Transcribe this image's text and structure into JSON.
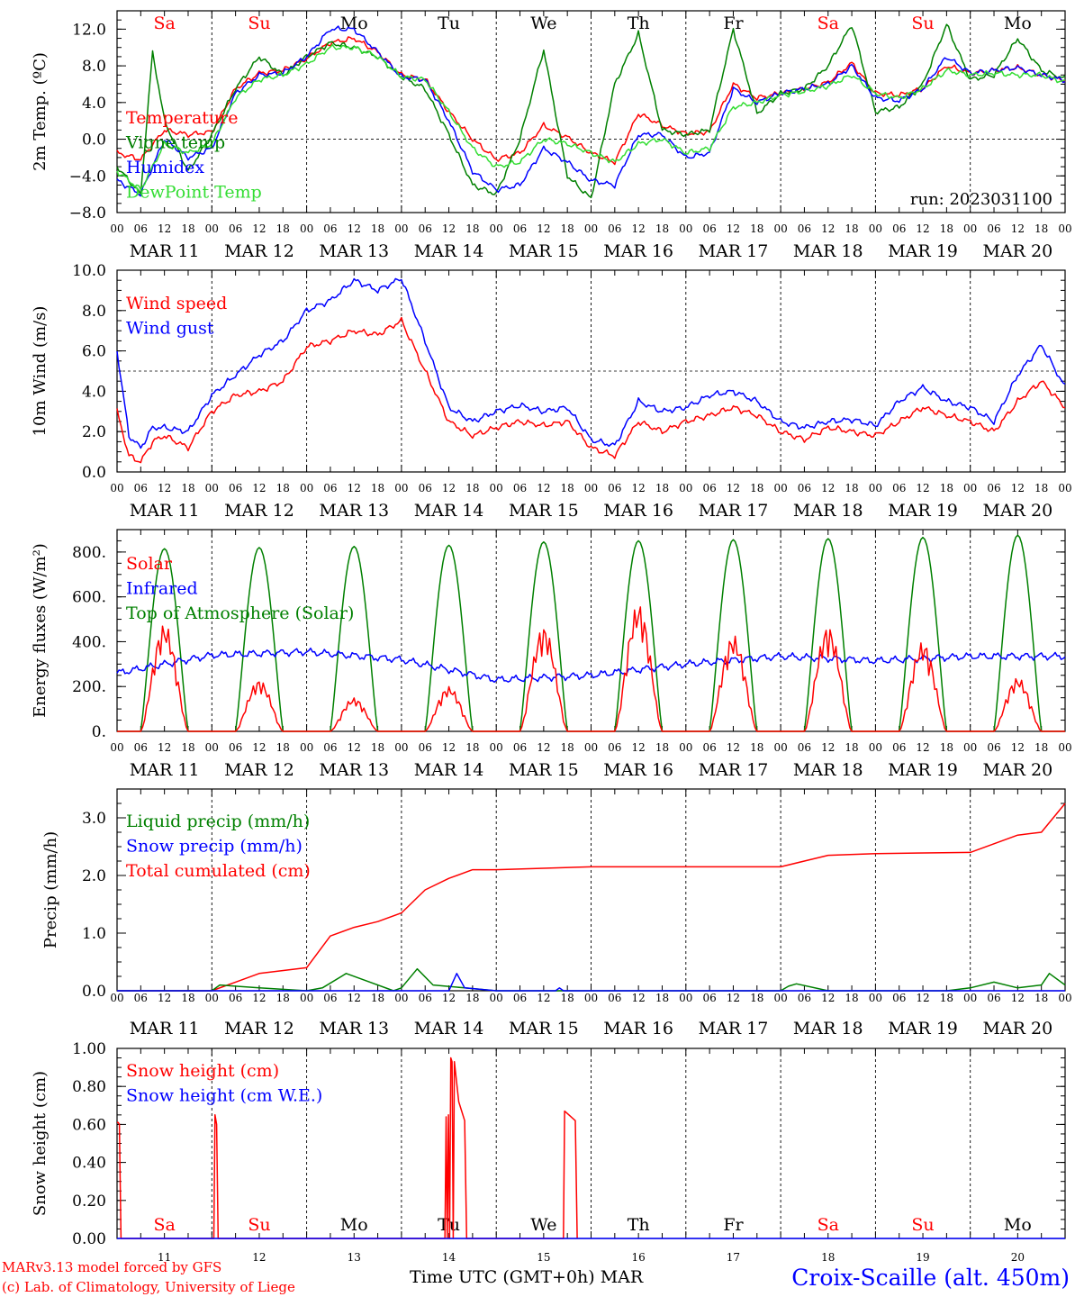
{
  "header": {
    "run_label": "run: 2023031100",
    "x_hour_labels": [
      "00",
      "06",
      "12",
      "18"
    ],
    "date_labels": [
      "MAR 11",
      "MAR 12",
      "MAR 13",
      "MAR 14",
      "MAR 15",
      "MAR 16",
      "MAR 17",
      "MAR 18",
      "MAR 19",
      "MAR 20"
    ],
    "weekdays": [
      "Sa",
      "Su",
      "Mo",
      "Tu",
      "We",
      "Th",
      "Fr",
      "Sa",
      "Su",
      "Mo"
    ],
    "weekday_colors": [
      "#ff0000",
      "#ff0000",
      "#000000",
      "#000000",
      "#000000",
      "#000000",
      "#000000",
      "#ff0000",
      "#ff0000",
      "#000000"
    ],
    "day_numbers": [
      "11",
      "12",
      "13",
      "14",
      "15",
      "16",
      "17",
      "18",
      "19",
      "20"
    ]
  },
  "footer": {
    "model": "MARv3.13 model forced by GFS",
    "credit": "(c) Lab. of Climatology, University of Liege",
    "xaxis": "Time UTC (GMT+0h) MAR",
    "station": "Croix-Scaille (alt. 450m)"
  },
  "colors": {
    "red": "#ff0000",
    "green": "#008000",
    "blue": "#0000ff",
    "lightgreen": "#33dd33",
    "purple": "#800080"
  },
  "chart_data": [
    {
      "type": "line",
      "id": "temp",
      "ylabel": "2m Temp. (ºC)",
      "ylim": [
        -8,
        14
      ],
      "yticks": [
        "12.0",
        "8.0",
        "4.0",
        "0.0",
        "−4.0",
        "−8.0"
      ],
      "x_unit": "hours since 2023-03-11 00 UTC",
      "reference_line": 0,
      "series": [
        {
          "name": "Temperature",
          "color": "#ff0000",
          "x": [
            0,
            6,
            12,
            18,
            24,
            30,
            36,
            42,
            48,
            54,
            60,
            66,
            72,
            78,
            84,
            90,
            96,
            102,
            108,
            114,
            120,
            126,
            132,
            138,
            144,
            150,
            156,
            162,
            168,
            174,
            180,
            186,
            192,
            198,
            204,
            210,
            216,
            222,
            228,
            234,
            240
          ],
          "values": [
            -1.5,
            -2.2,
            1.0,
            0.5,
            0.8,
            5.5,
            7.2,
            7.5,
            8.8,
            10.5,
            11.0,
            9.5,
            7.0,
            6.5,
            3.0,
            0.0,
            -2.2,
            -1.5,
            1.5,
            0.2,
            -1.5,
            -2.5,
            2.8,
            1.5,
            0.6,
            0.8,
            6.0,
            4.5,
            5.0,
            5.5,
            6.2,
            8.3,
            5.0,
            4.8,
            5.5,
            8.0,
            7.2,
            7.5,
            7.8,
            7.0,
            6.4
          ]
        },
        {
          "name": "Vigne temp",
          "color": "#008000",
          "x": [
            0,
            6,
            9,
            12,
            18,
            24,
            30,
            36,
            42,
            48,
            54,
            60,
            66,
            72,
            78,
            84,
            90,
            96,
            102,
            108,
            114,
            120,
            126,
            132,
            138,
            144,
            150,
            156,
            162,
            168,
            174,
            180,
            186,
            192,
            198,
            204,
            210,
            216,
            222,
            228,
            234,
            240
          ],
          "values": [
            -3.0,
            -6.0,
            9.5,
            2.0,
            -3.5,
            0.5,
            5.5,
            9.0,
            7.0,
            9.0,
            10.5,
            10.0,
            9.0,
            6.8,
            5.5,
            0.5,
            -5.0,
            -6.0,
            0.0,
            9.8,
            -4.0,
            -6.5,
            6.0,
            11.5,
            1.0,
            0.5,
            1.0,
            12.0,
            2.8,
            5.0,
            5.5,
            8.0,
            12.5,
            3.0,
            3.5,
            6.0,
            12.5,
            6.5,
            7.0,
            11.0,
            7.5,
            6.6
          ]
        },
        {
          "name": "Humidex",
          "color": "#0000ff",
          "x": [
            0,
            6,
            12,
            18,
            24,
            30,
            36,
            42,
            48,
            54,
            60,
            66,
            72,
            78,
            84,
            90,
            96,
            102,
            108,
            114,
            120,
            126,
            132,
            138,
            144,
            150,
            156,
            162,
            168,
            174,
            180,
            186,
            192,
            198,
            204,
            210,
            216,
            222,
            228,
            234,
            240
          ],
          "values": [
            -4.5,
            -6.0,
            0.0,
            -2.0,
            -1.0,
            5.0,
            7.0,
            7.2,
            9.0,
            12.0,
            12.0,
            9.5,
            6.8,
            6.5,
            2.0,
            -3.5,
            -5.5,
            -5.0,
            -1.0,
            -2.5,
            -4.5,
            -5.0,
            0.5,
            0.5,
            -2.0,
            -1.5,
            5.5,
            4.0,
            5.0,
            5.5,
            6.0,
            8.0,
            4.5,
            4.2,
            5.5,
            9.0,
            7.2,
            7.5,
            7.8,
            7.0,
            6.4
          ]
        },
        {
          "name": "DewPoint Temp",
          "color": "#33dd33",
          "x": [
            0,
            6,
            12,
            18,
            24,
            30,
            36,
            42,
            48,
            54,
            60,
            66,
            72,
            78,
            84,
            90,
            96,
            102,
            108,
            114,
            120,
            126,
            132,
            138,
            144,
            150,
            156,
            162,
            168,
            174,
            180,
            186,
            192,
            198,
            204,
            210,
            216,
            222,
            228,
            234,
            240
          ],
          "values": [
            -3.5,
            -5.5,
            -0.5,
            -1.5,
            -0.5,
            4.5,
            6.5,
            7.0,
            8.2,
            10.0,
            10.0,
            9.0,
            6.8,
            6.5,
            3.0,
            -1.0,
            -3.0,
            -2.5,
            0.0,
            -0.5,
            -1.5,
            -2.5,
            -0.5,
            0.0,
            -1.5,
            -1.0,
            3.5,
            4.0,
            4.8,
            5.2,
            5.8,
            7.0,
            5.0,
            4.5,
            5.5,
            7.5,
            7.0,
            7.2,
            7.0,
            7.0,
            6.2
          ]
        }
      ],
      "legend": [
        "Temperature",
        "Vigne temp",
        "Humidex",
        "DewPoint Temp"
      ]
    },
    {
      "type": "line",
      "id": "wind",
      "ylabel": "10m Wind (m/s)",
      "ylim": [
        0,
        10
      ],
      "yticks": [
        "10.0",
        "8.0",
        "6.0",
        "4.0",
        "2.0",
        "0.0"
      ],
      "x_unit": "hours since 2023-03-11 00 UTC",
      "reference_line": 5,
      "series": [
        {
          "name": "Wind speed",
          "color": "#ff0000",
          "x": [
            0,
            3,
            6,
            9,
            12,
            18,
            24,
            30,
            36,
            42,
            48,
            54,
            60,
            66,
            72,
            78,
            84,
            90,
            96,
            102,
            108,
            114,
            120,
            126,
            132,
            138,
            144,
            150,
            156,
            162,
            168,
            174,
            180,
            186,
            192,
            198,
            204,
            210,
            216,
            222,
            228,
            234,
            240
          ],
          "values": [
            3.0,
            0.8,
            0.5,
            1.5,
            1.8,
            1.2,
            3.0,
            3.8,
            4.0,
            4.5,
            6.2,
            6.5,
            7.0,
            6.8,
            7.5,
            5.0,
            2.5,
            1.8,
            2.2,
            2.5,
            2.3,
            2.5,
            1.2,
            0.8,
            2.5,
            2.0,
            2.5,
            2.8,
            3.2,
            2.8,
            2.0,
            1.6,
            2.2,
            2.0,
            1.8,
            2.5,
            3.2,
            2.8,
            2.5,
            2.0,
            3.5,
            4.5,
            3.2
          ]
        },
        {
          "name": "Wind gust",
          "color": "#0000ff",
          "x": [
            0,
            3,
            6,
            9,
            12,
            18,
            24,
            30,
            36,
            42,
            48,
            54,
            60,
            66,
            72,
            78,
            84,
            90,
            96,
            102,
            108,
            114,
            120,
            126,
            132,
            138,
            144,
            150,
            156,
            162,
            168,
            174,
            180,
            186,
            192,
            198,
            204,
            210,
            216,
            222,
            228,
            234,
            240
          ],
          "values": [
            6.0,
            1.8,
            1.2,
            2.2,
            2.2,
            2.0,
            3.8,
            4.8,
            5.8,
            6.5,
            8.0,
            8.5,
            9.5,
            9.0,
            9.6,
            6.5,
            3.2,
            2.5,
            3.0,
            3.3,
            3.0,
            3.2,
            1.6,
            1.3,
            3.5,
            3.0,
            3.2,
            3.8,
            4.0,
            3.5,
            2.5,
            2.2,
            2.5,
            2.6,
            2.3,
            3.5,
            4.2,
            3.5,
            3.2,
            2.5,
            4.8,
            6.3,
            4.2
          ]
        }
      ],
      "legend": [
        "Wind speed",
        "Wind gust"
      ]
    },
    {
      "type": "line",
      "id": "energy",
      "ylabel": "Energy fluxes (W/m²)",
      "ylim": [
        0,
        900
      ],
      "yticks": [
        "800.",
        "600.",
        "400.",
        "200.",
        "0."
      ],
      "x_unit": "hours since 2023-03-11 00 UTC",
      "solar_peaks": [
        480,
        230,
        150,
        200,
        470,
        570,
        430,
        470,
        400,
        240
      ],
      "toa_peaks": [
        815,
        820,
        825,
        830,
        845,
        850,
        855,
        860,
        865,
        875
      ],
      "infrared_levels": [
        260,
        340,
        355,
        320,
        230,
        250,
        300,
        335,
        315,
        335
      ],
      "legend": [
        "Solar",
        "Infrared",
        "Top of Atmosphere (Solar)"
      ],
      "legend_colors": [
        "#ff0000",
        "#0000ff",
        "#008000"
      ]
    },
    {
      "type": "line",
      "id": "precip",
      "ylabel": "Precip (mm/h)",
      "ylim": [
        0,
        3.5
      ],
      "yticks": [
        "3.0",
        "2.0",
        "1.0",
        "0.0"
      ],
      "x_unit": "hours since 2023-03-11 00 UTC",
      "series": [
        {
          "name": "Total cumulated (cm)",
          "color": "#ff0000",
          "x": [
            0,
            24,
            30,
            36,
            48,
            54,
            60,
            66,
            72,
            78,
            84,
            90,
            96,
            120,
            144,
            168,
            174,
            180,
            192,
            216,
            222,
            228,
            234,
            240
          ],
          "values": [
            0,
            0,
            0.15,
            0.3,
            0.4,
            0.95,
            1.1,
            1.2,
            1.35,
            1.75,
            1.95,
            2.1,
            2.1,
            2.15,
            2.15,
            2.15,
            2.25,
            2.35,
            2.38,
            2.4,
            2.55,
            2.7,
            2.75,
            3.25
          ]
        },
        {
          "name": "Liquid precip (mm/h)",
          "color": "#008000",
          "x": [
            0,
            24,
            26,
            36,
            48,
            52,
            58,
            62,
            70,
            72,
            76,
            80,
            88,
            96,
            120,
            168,
            170,
            172,
            180,
            210,
            216,
            222,
            228,
            234,
            236,
            240
          ],
          "values": [
            0,
            0,
            0.1,
            0.05,
            0,
            0.05,
            0.3,
            0.2,
            0,
            0.05,
            0.38,
            0.1,
            0.05,
            0,
            0,
            0,
            0.08,
            0.12,
            0,
            0,
            0.05,
            0.15,
            0.05,
            0.1,
            0.3,
            0.1
          ]
        },
        {
          "name": "Snow precip (mm/h)",
          "color": "#0000ff",
          "x": [
            0,
            84,
            86,
            88,
            96,
            111,
            112,
            113,
            240
          ],
          "values": [
            0,
            0,
            0.3,
            0.05,
            0,
            0,
            0.05,
            0,
            0
          ]
        }
      ],
      "legend": [
        "Liquid precip (mm/h)",
        "Snow precip (mm/h)",
        "Total cumulated (cm)"
      ]
    },
    {
      "type": "line",
      "id": "snow",
      "ylabel": "Snow height (cm)",
      "ylim": [
        0,
        1.0
      ],
      "yticks": [
        "1.00",
        "0.80",
        "0.60",
        "0.40",
        "0.20",
        "0.00"
      ],
      "x_unit": "hours since 2023-03-11 00 UTC",
      "series": [
        {
          "name": "Snow height (cm)",
          "color": "#ff0000",
          "x": [
            0,
            0.3,
            0.6,
            1.0,
            24.5,
            24.8,
            25.2,
            25.6,
            83,
            83.3,
            83.6,
            83.9,
            84.2,
            84.5,
            84.8,
            85.1,
            85.4,
            86.5,
            88,
            88.5,
            113,
            113.3,
            116,
            116.5
          ],
          "values": [
            0.61,
            0.61,
            0.6,
            0,
            0,
            0.65,
            0.6,
            0,
            0,
            0.64,
            0,
            0.65,
            0,
            0.95,
            0.93,
            0,
            0.93,
            0.72,
            0.62,
            0,
            0,
            0.67,
            0.62,
            0
          ]
        },
        {
          "name": "Snow height (cm W.E.)",
          "color": "#0000ff",
          "x": [
            0,
            240
          ],
          "values": [
            0,
            0
          ]
        }
      ],
      "legend": [
        "Snow height (cm)",
        "Snow height (cm W.E.)"
      ]
    }
  ]
}
